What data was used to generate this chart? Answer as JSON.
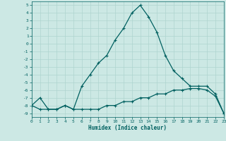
{
  "xlabel": "Humidex (Indice chaleur)",
  "bg_color": "#cce8e4",
  "grid_color": "#aed4cf",
  "line_color": "#006060",
  "xlim": [
    0,
    23
  ],
  "ylim": [
    -9.5,
    5.5
  ],
  "xticks": [
    0,
    1,
    2,
    3,
    4,
    5,
    6,
    7,
    8,
    9,
    10,
    11,
    12,
    13,
    14,
    15,
    16,
    17,
    18,
    19,
    20,
    21,
    22,
    23
  ],
  "yticks": [
    5,
    4,
    3,
    2,
    1,
    0,
    -1,
    -2,
    -3,
    -4,
    -5,
    -6,
    -7,
    -8,
    -9
  ],
  "line1_x": [
    0,
    1,
    2,
    3,
    4,
    5,
    6,
    7,
    8,
    9,
    10,
    11,
    12,
    13,
    14,
    15,
    16,
    17,
    18,
    19,
    20,
    21,
    22,
    23
  ],
  "line1_y": [
    -8,
    -7,
    -8.5,
    -8.5,
    -8,
    -8.5,
    -5.5,
    -4,
    -2.5,
    -1.5,
    0.5,
    2,
    4,
    5,
    3.5,
    1.5,
    -1.5,
    -3.5,
    -4.5,
    -5.5,
    -5.5,
    -5.5,
    -6.5,
    -9
  ],
  "line2_x": [
    0,
    1,
    2,
    3,
    4,
    5,
    6,
    7,
    8,
    9,
    10,
    11,
    12,
    13,
    14,
    15,
    16,
    17,
    18,
    19,
    20,
    21,
    22,
    23
  ],
  "line2_y": [
    -8,
    -8.5,
    -8.5,
    -8.5,
    -8,
    -8.5,
    -8.5,
    -8.5,
    -8.5,
    -8,
    -8,
    -7.5,
    -7.5,
    -7,
    -7,
    -6.5,
    -6.5,
    -6,
    -6,
    -5.8,
    -5.8,
    -6,
    -6.8,
    -9
  ]
}
